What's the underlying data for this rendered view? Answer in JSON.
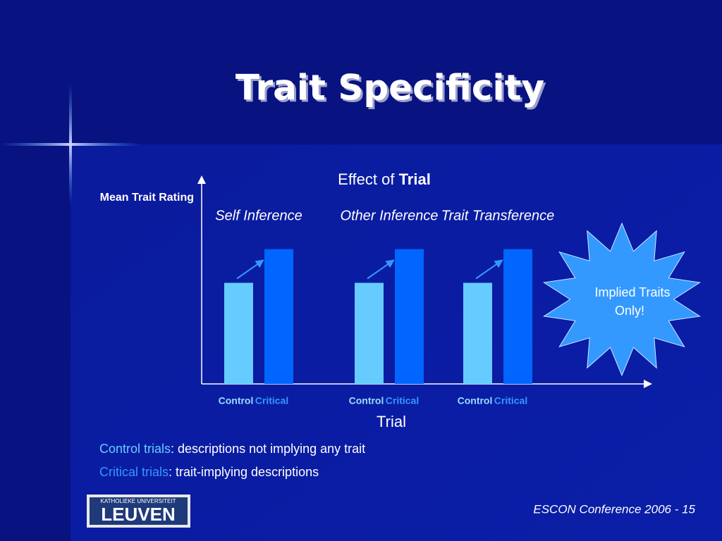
{
  "slide_title": "Trait Specificity",
  "chart_data": {
    "type": "bar",
    "title_parts": [
      "Effect of ",
      "Trial"
    ],
    "ylabel": "Mean Trait Rating",
    "xlabel": "Trial",
    "categories": [
      "Self Inference",
      "Other Inference",
      "Trait Transference"
    ],
    "series": [
      {
        "name": "Control",
        "color": "#66ccff",
        "values": [
          3,
          3,
          3
        ]
      },
      {
        "name": "Critical",
        "color": "#0066ff",
        "values": [
          4,
          4,
          4
        ]
      }
    ],
    "ylim": [
      0,
      6
    ]
  },
  "callout": [
    "Implied Traits",
    "Only!"
  ],
  "notes": [
    {
      "term": "Control trials",
      "text": ": descriptions not implying any trait"
    },
    {
      "term": "Critical trials",
      "text": ": trait-implying descriptions"
    }
  ],
  "logo": {
    "top": "KATHOLIEKE UNIVERSITEIT",
    "main": "LEUVEN"
  },
  "footer": "ESCON Conference 2006 - 15"
}
